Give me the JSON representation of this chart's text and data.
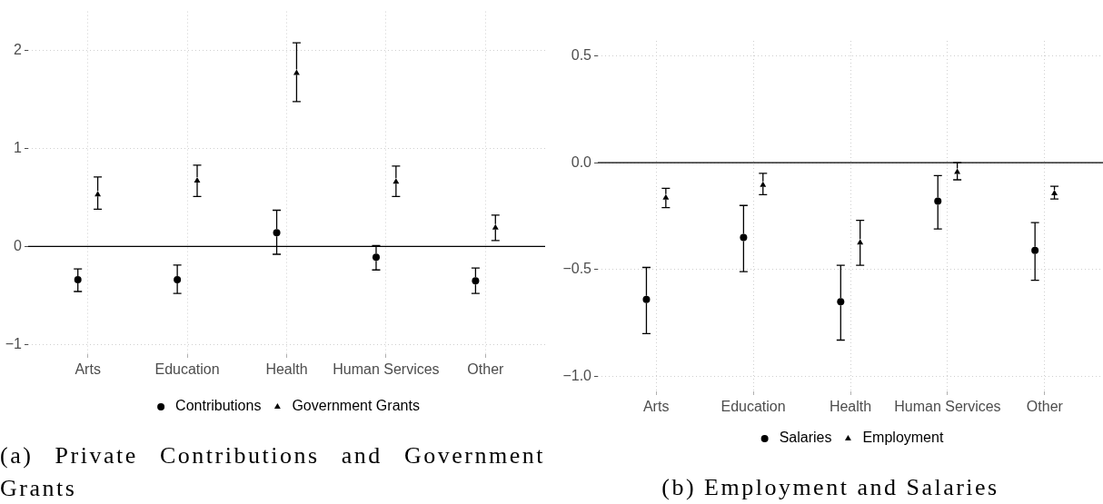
{
  "chart_data": [
    {
      "type": "scatter",
      "title": "(a) Private Contributions and Government Grants",
      "categories": [
        "Arts",
        "Education",
        "Health",
        "Human Services",
        "Other"
      ],
      "series": [
        {
          "name": "Contributions",
          "color": "#000000",
          "marker": "circle",
          "values": [
            -0.34,
            -0.34,
            0.14,
            -0.11,
            -0.35
          ],
          "errors": [
            [
              -0.46,
              -0.23
            ],
            [
              -0.48,
              -0.19
            ],
            [
              -0.08,
              0.37
            ],
            [
              -0.24,
              0.01
            ],
            [
              -0.48,
              -0.22
            ]
          ]
        },
        {
          "name": "Government Grants",
          "color": "#000000",
          "marker": "triangle",
          "values": [
            0.54,
            0.68,
            1.78,
            0.67,
            0.2
          ],
          "errors": [
            [
              0.38,
              0.71
            ],
            [
              0.51,
              0.83
            ],
            [
              1.48,
              2.08
            ],
            [
              0.51,
              0.82
            ],
            [
              0.06,
              0.32
            ]
          ]
        }
      ],
      "ylim": [
        -1.1,
        2.4
      ],
      "yticks": [
        {
          "value": -1,
          "label": "−1"
        },
        0,
        1,
        2
      ],
      "grid": true,
      "legend": "bottom",
      "ref_lines": [
        {
          "axis": "y",
          "value": 0,
          "color": "#000000"
        }
      ]
    },
    {
      "type": "scatter",
      "title": "(b) Employment and Salaries",
      "categories": [
        "Arts",
        "Education",
        "Health",
        "Human Services",
        "Other"
      ],
      "series": [
        {
          "name": "Salaries",
          "color": "#000000",
          "marker": "circle",
          "values": [
            -0.64,
            -0.35,
            -0.65,
            -0.18,
            -0.41
          ],
          "errors": [
            [
              -0.8,
              -0.49
            ],
            [
              -0.51,
              -0.2
            ],
            [
              -0.83,
              -0.48
            ],
            [
              -0.31,
              -0.06
            ],
            [
              -0.55,
              -0.28
            ]
          ]
        },
        {
          "name": "Employment",
          "color": "#000000",
          "marker": "triangle",
          "values": [
            -0.16,
            -0.1,
            -0.37,
            -0.04,
            -0.14
          ],
          "errors": [
            [
              -0.21,
              -0.12
            ],
            [
              -0.15,
              -0.05
            ],
            [
              -0.48,
              -0.27
            ],
            [
              -0.08,
              0.0
            ],
            [
              -0.17,
              -0.11
            ]
          ]
        }
      ],
      "ylim": [
        -1.07,
        0.57
      ],
      "yticks": [
        {
          "value": -1,
          "label": "−1.0"
        },
        {
          "value": -0.5,
          "label": "−0.5"
        },
        {
          "value": 0,
          "label": "0.0"
        },
        {
          "value": 0.5,
          "label": "0.5"
        }
      ],
      "grid": true,
      "legend": "bottom",
      "ref_lines": [
        {
          "axis": "y",
          "value": 0,
          "color": "#000000"
        }
      ]
    }
  ]
}
